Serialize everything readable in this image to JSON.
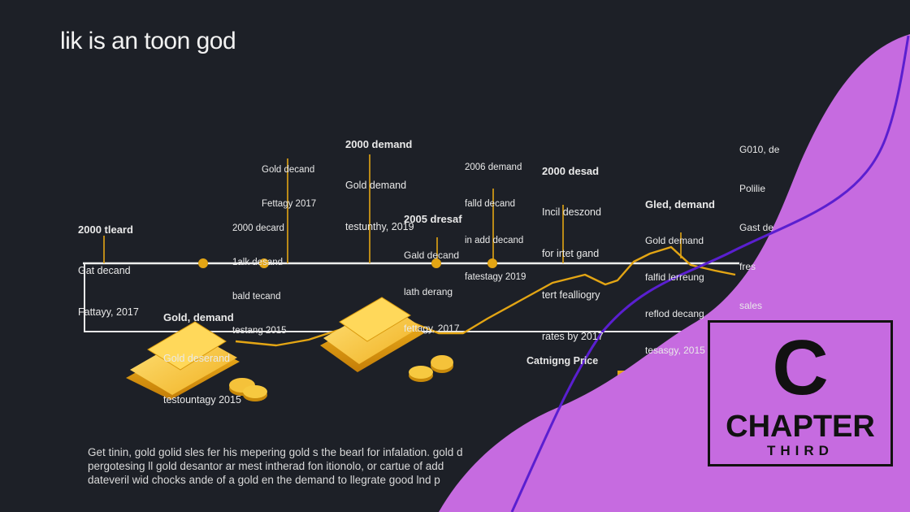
{
  "title": "lik is an toon god",
  "labels": [
    {
      "lines": [
        "2000 tleard",
        "Gat decand",
        "Fattayy, 2017"
      ]
    },
    {
      "lines": [
        "Gold decand",
        "Fettagy 2017"
      ]
    },
    {
      "lines": [
        "2000 decard",
        "1alk desand",
        "bald tecand",
        "testang 2015"
      ]
    },
    {
      "lines": [
        "2000 demand",
        "Gold demand",
        "testunthy, 2019"
      ]
    },
    {
      "lines": [
        "2005 dresaf",
        "Gald decand",
        "lath derang",
        "fettagy, 2017"
      ]
    },
    {
      "lines": [
        "2006 demand",
        "falld decand",
        "in add decand",
        "fatestagy 2019"
      ]
    },
    {
      "lines": [
        "2000 desad",
        "Incil deszond",
        "for irtet gand",
        "tert fealliogry",
        "rates by 2017"
      ]
    },
    {
      "lines": [
        "Gled, demand",
        "Gold demand",
        "falfid lerreung",
        "reflod decang",
        "tesasgy, 2015"
      ]
    },
    {
      "lines": [
        "G010, de",
        "Polilie",
        "Gast de",
        "fres",
        "sales"
      ]
    },
    {
      "lines": [
        "Gold, demand",
        "Gold deserand",
        "testountagy 2015"
      ]
    }
  ],
  "price_label": "Catnigng Price",
  "paragraph": [
    "Get tinin, gold golid sles fer his mepering gold s the bearl for infalation. gold d",
    "pergotesing ll gold desantor ar mest intherad fon itionolo, or cartue of add",
    "dateveril wid chocks ande of a gold en the demand to llegrate good lnd p"
  ],
  "badge": {
    "letter": "C",
    "word": "CHAPTER",
    "sub": "THIRD"
  },
  "colors": {
    "background": "#1d2027",
    "gold": "#e3a514",
    "accent": "#c66be0",
    "curve": "#5a1fd0"
  }
}
